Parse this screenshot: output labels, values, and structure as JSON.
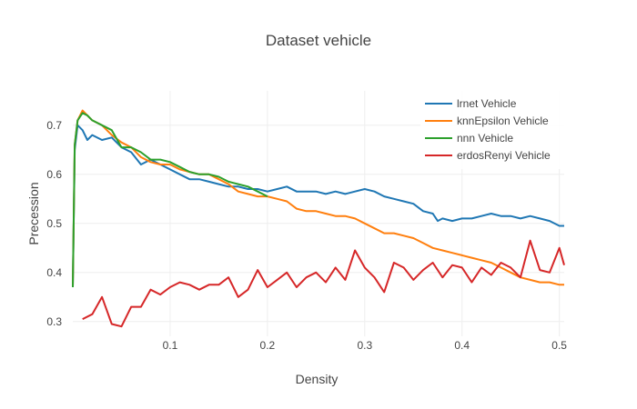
{
  "chart_data": {
    "type": "line",
    "title": "Dataset vehicle",
    "xlabel": "Density",
    "ylabel": "Precession",
    "xlim": [
      0.0,
      0.505
    ],
    "ylim": [
      0.27,
      0.77
    ],
    "xticks": [
      0.1,
      0.2,
      0.3,
      0.4,
      0.5
    ],
    "xtick_labels": [
      "0.1",
      "0.2",
      "0.3",
      "0.4",
      "0.5"
    ],
    "yticks": [
      0.3,
      0.4,
      0.5,
      0.6,
      0.7
    ],
    "ytick_labels": [
      "0.3",
      "0.4",
      "0.5",
      "0.6",
      "0.7"
    ],
    "grid": true,
    "legend_position": "top-right",
    "series": [
      {
        "name": "lrnet Vehicle",
        "color": "#1f77b4",
        "x": [
          0.0,
          0.002,
          0.005,
          0.01,
          0.015,
          0.02,
          0.03,
          0.04,
          0.05,
          0.06,
          0.07,
          0.08,
          0.09,
          0.1,
          0.11,
          0.12,
          0.13,
          0.14,
          0.15,
          0.16,
          0.17,
          0.18,
          0.19,
          0.2,
          0.21,
          0.22,
          0.23,
          0.24,
          0.25,
          0.26,
          0.27,
          0.28,
          0.29,
          0.3,
          0.31,
          0.32,
          0.33,
          0.34,
          0.35,
          0.36,
          0.37,
          0.375,
          0.38,
          0.39,
          0.4,
          0.41,
          0.42,
          0.43,
          0.44,
          0.45,
          0.46,
          0.47,
          0.48,
          0.49,
          0.5,
          0.505
        ],
        "y": [
          0.37,
          0.65,
          0.7,
          0.69,
          0.67,
          0.68,
          0.67,
          0.675,
          0.655,
          0.645,
          0.62,
          0.63,
          0.62,
          0.61,
          0.6,
          0.59,
          0.59,
          0.585,
          0.58,
          0.575,
          0.575,
          0.57,
          0.57,
          0.565,
          0.57,
          0.575,
          0.565,
          0.565,
          0.565,
          0.56,
          0.565,
          0.56,
          0.565,
          0.57,
          0.565,
          0.555,
          0.55,
          0.545,
          0.54,
          0.525,
          0.52,
          0.505,
          0.51,
          0.505,
          0.51,
          0.51,
          0.515,
          0.52,
          0.515,
          0.515,
          0.51,
          0.515,
          0.51,
          0.505,
          0.495,
          0.495
        ]
      },
      {
        "name": "knnEpsilon Vehicle",
        "color": "#ff7f0e",
        "x": [
          0.0,
          0.002,
          0.005,
          0.01,
          0.015,
          0.02,
          0.03,
          0.04,
          0.05,
          0.06,
          0.07,
          0.08,
          0.09,
          0.1,
          0.11,
          0.12,
          0.13,
          0.14,
          0.15,
          0.16,
          0.17,
          0.18,
          0.19,
          0.2,
          0.21,
          0.22,
          0.23,
          0.24,
          0.25,
          0.26,
          0.27,
          0.28,
          0.29,
          0.3,
          0.31,
          0.32,
          0.33,
          0.34,
          0.35,
          0.36,
          0.37,
          0.38,
          0.39,
          0.4,
          0.41,
          0.42,
          0.43,
          0.44,
          0.45,
          0.46,
          0.47,
          0.48,
          0.49,
          0.5,
          0.505
        ],
        "y": [
          0.37,
          0.66,
          0.71,
          0.73,
          0.72,
          0.71,
          0.7,
          0.68,
          0.665,
          0.655,
          0.635,
          0.625,
          0.62,
          0.62,
          0.61,
          0.605,
          0.6,
          0.6,
          0.59,
          0.58,
          0.565,
          0.56,
          0.555,
          0.555,
          0.55,
          0.545,
          0.53,
          0.525,
          0.525,
          0.52,
          0.515,
          0.515,
          0.51,
          0.5,
          0.49,
          0.48,
          0.48,
          0.475,
          0.47,
          0.46,
          0.45,
          0.445,
          0.44,
          0.435,
          0.43,
          0.425,
          0.42,
          0.41,
          0.4,
          0.39,
          0.385,
          0.38,
          0.38,
          0.375,
          0.375
        ]
      },
      {
        "name": "nnn Vehicle",
        "color": "#2ca02c",
        "x": [
          0.0,
          0.002,
          0.005,
          0.01,
          0.015,
          0.02,
          0.03,
          0.04,
          0.05,
          0.06,
          0.07,
          0.08,
          0.09,
          0.1,
          0.11,
          0.12,
          0.13,
          0.14,
          0.15,
          0.16,
          0.17,
          0.18,
          0.19,
          0.2
        ],
        "y": [
          0.37,
          0.66,
          0.71,
          0.725,
          0.72,
          0.71,
          0.7,
          0.69,
          0.655,
          0.655,
          0.645,
          0.63,
          0.63,
          0.625,
          0.615,
          0.605,
          0.6,
          0.6,
          0.595,
          0.585,
          0.58,
          0.575,
          0.565,
          0.555
        ]
      },
      {
        "name": "erdosRenyi Vehicle",
        "color": "#d62728",
        "x": [
          0.01,
          0.02,
          0.03,
          0.04,
          0.05,
          0.06,
          0.07,
          0.08,
          0.09,
          0.1,
          0.11,
          0.12,
          0.13,
          0.14,
          0.15,
          0.16,
          0.17,
          0.18,
          0.19,
          0.2,
          0.21,
          0.22,
          0.23,
          0.24,
          0.25,
          0.26,
          0.27,
          0.28,
          0.29,
          0.3,
          0.31,
          0.32,
          0.33,
          0.34,
          0.35,
          0.36,
          0.37,
          0.38,
          0.39,
          0.4,
          0.41,
          0.42,
          0.43,
          0.44,
          0.45,
          0.46,
          0.47,
          0.48,
          0.49,
          0.5,
          0.505
        ],
        "y": [
          0.305,
          0.315,
          0.35,
          0.295,
          0.29,
          0.33,
          0.33,
          0.365,
          0.355,
          0.37,
          0.38,
          0.375,
          0.365,
          0.375,
          0.375,
          0.39,
          0.35,
          0.365,
          0.405,
          0.37,
          0.385,
          0.4,
          0.37,
          0.39,
          0.4,
          0.38,
          0.41,
          0.385,
          0.445,
          0.41,
          0.39,
          0.36,
          0.42,
          0.41,
          0.385,
          0.405,
          0.42,
          0.39,
          0.415,
          0.41,
          0.38,
          0.41,
          0.395,
          0.42,
          0.41,
          0.39,
          0.465,
          0.405,
          0.4,
          0.45,
          0.415
        ]
      }
    ]
  }
}
